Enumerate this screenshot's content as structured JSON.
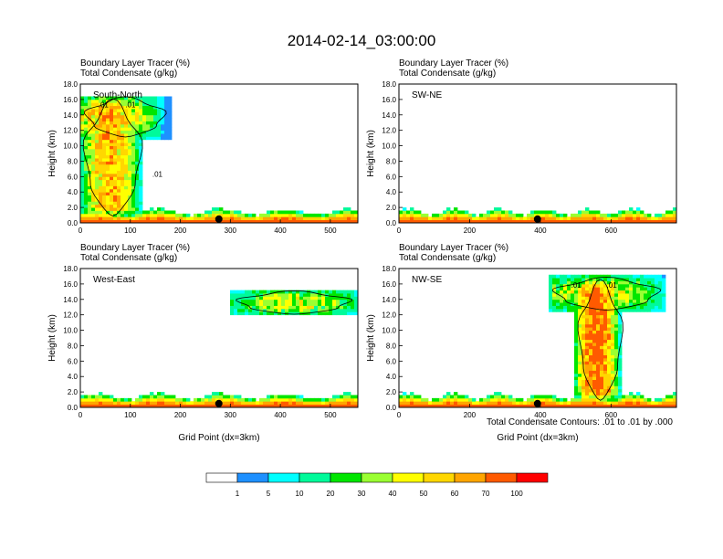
{
  "figure": {
    "title": "2014-02-14_03:00:00",
    "var_line1": "Boundary Layer Tracer   (%)",
    "var_line2": "Total Condensate   (g/kg)",
    "footnote": "Total Condensate Contours: .01 to .01 by .000",
    "contour_label": ".01"
  },
  "chart_data": [
    {
      "type": "heatmap",
      "panel": "South-North",
      "title": "South-North",
      "subtitle": [
        "Boundary Layer Tracer   (%)",
        "Total Condensate   (g/kg)"
      ],
      "ylabel": "Height (km)",
      "xlabel": "",
      "xlim": [
        0,
        555
      ],
      "ylim": [
        0,
        18
      ],
      "xticks": [
        0,
        100,
        200,
        300,
        400,
        500
      ],
      "yticks": [
        "0.0",
        "2.0",
        "4.0",
        "6.0",
        "8.0",
        "10.0",
        "12.0",
        "14.0",
        "16.0",
        "18.0"
      ],
      "marker_x": 277,
      "contour_labels": [
        ".01",
        ".01",
        ".01"
      ],
      "features": [
        {
          "kind": "surface",
          "x0": 0,
          "x1": 555
        },
        {
          "kind": "plume",
          "x0": 0,
          "x1": 130,
          "z0": 0.5,
          "z1": 16.5,
          "xc": 60,
          "intensity": 60
        },
        {
          "kind": "anvil",
          "x0": 0,
          "x1": 180,
          "z0": 11,
          "z1": 16.5,
          "xc": 60,
          "intensity": 55
        }
      ]
    },
    {
      "type": "heatmap",
      "panel": "SW-NE",
      "title": "SW-NE",
      "subtitle": [
        "Boundary Layer Tracer   (%)",
        "Total Condensate   (g/kg)"
      ],
      "ylabel": "Height (km)",
      "xlabel": "",
      "xlim": [
        0,
        785
      ],
      "ylim": [
        0,
        18
      ],
      "xticks": [
        0,
        200,
        400,
        600
      ],
      "yticks": [
        "0.0",
        "2.0",
        "4.0",
        "6.0",
        "8.0",
        "10.0",
        "12.0",
        "14.0",
        "16.0",
        "18.0"
      ],
      "marker_x": 392,
      "contour_labels": [],
      "features": [
        {
          "kind": "surface",
          "x0": 0,
          "x1": 785
        }
      ]
    },
    {
      "type": "heatmap",
      "panel": "West-East",
      "title": "West-East",
      "subtitle": [
        "Boundary Layer Tracer   (%)",
        "Total Condensate   (g/kg)"
      ],
      "ylabel": "Height (km)",
      "xlabel": "Grid Point (dx=3km)",
      "xlim": [
        0,
        555
      ],
      "ylim": [
        0,
        18
      ],
      "xticks": [
        0,
        100,
        200,
        300,
        400,
        500
      ],
      "yticks": [
        "0.0",
        "2.0",
        "4.0",
        "6.0",
        "8.0",
        "10.0",
        "12.0",
        "14.0",
        "16.0",
        "18.0"
      ],
      "marker_x": 277,
      "contour_labels": [],
      "features": [
        {
          "kind": "surface",
          "x0": 0,
          "x1": 555
        },
        {
          "kind": "anvil",
          "x0": 300,
          "x1": 555,
          "z0": 12,
          "z1": 15.2,
          "xc": 430,
          "intensity": 40
        }
      ]
    },
    {
      "type": "heatmap",
      "panel": "NW-SE",
      "title": "NW-SE",
      "subtitle": [
        "Boundary Layer Tracer   (%)",
        "Total Condensate   (g/kg)"
      ],
      "ylabel": "Height (km)",
      "xlabel": "Grid Point (dx=3km)",
      "xlim": [
        0,
        785
      ],
      "ylim": [
        0,
        18
      ],
      "xticks": [
        0,
        200,
        400,
        600
      ],
      "yticks": [
        "0.0",
        "2.0",
        "4.0",
        "6.0",
        "8.0",
        "10.0",
        "12.0",
        "14.0",
        "16.0",
        "18.0"
      ],
      "marker_x": 392,
      "contour_labels": [
        ".01",
        ".01"
      ],
      "features": [
        {
          "kind": "surface",
          "x0": 0,
          "x1": 785
        },
        {
          "kind": "plume",
          "x0": 500,
          "x1": 640,
          "z0": 0.5,
          "z1": 17,
          "xc": 560,
          "intensity": 75
        },
        {
          "kind": "anvil",
          "x0": 420,
          "x1": 755,
          "z0": 12.5,
          "z1": 17,
          "xc": 560,
          "intensity": 45
        }
      ]
    }
  ],
  "colorbar": {
    "labels": [
      "1",
      "5",
      "10",
      "20",
      "30",
      "40",
      "50",
      "60",
      "70",
      "100"
    ],
    "colors": [
      "#ffffff",
      "#1e90ff",
      "#00ffff",
      "#00fa9a",
      "#00e600",
      "#9aff32",
      "#ffff00",
      "#ffd700",
      "#ffa500",
      "#ff5a00",
      "#ff0000"
    ]
  }
}
